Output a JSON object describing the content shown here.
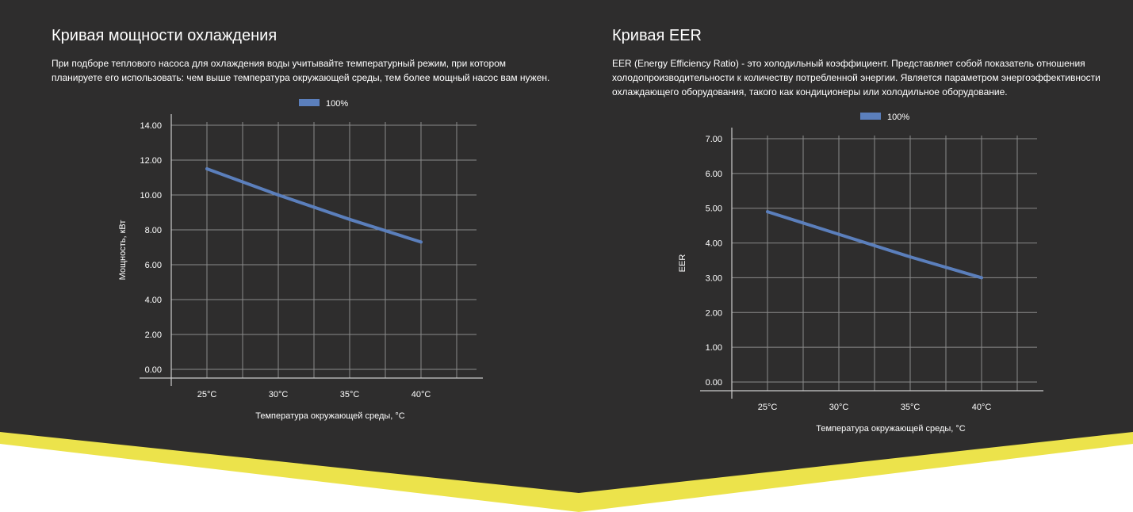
{
  "colors": {
    "background": "#2e2d2d",
    "accent": "#ece34b",
    "line": "#5b7fbc",
    "grid": "#8a8a8a",
    "text": "#ffffff"
  },
  "cooling": {
    "title": "Кривая мощности охлаждения",
    "description": "При подборе теплового насоса для охлаждения воды учитывайте температурный режим, при котором планируете его использовать: чем выше температура окружающей среды, тем более мощный насос вам нужен."
  },
  "eer": {
    "title": "Кривая EER",
    "description": "EER (Energy Efficiency Ratio) - это холодильный коэффициент. Представляет собой показатель отношения холодопроизводительности к количеству потребленной энергии. Является параметром энергоэффективности охлаждающего оборудования, такого как кондиционеры или холодильное оборудование."
  },
  "chart_data": [
    {
      "type": "line",
      "categories": [
        "25°C",
        "30°C",
        "35°C",
        "40°C"
      ],
      "series": [
        {
          "name": "100%",
          "values": [
            11.5,
            10.0,
            8.6,
            7.3
          ]
        }
      ],
      "xlabel": "Температура окружающей среды, °C",
      "ylabel": "Мощность, кВт",
      "yticks": [
        "0.00",
        "2.00",
        "4.00",
        "6.00",
        "8.00",
        "10.00",
        "12.00",
        "14.00"
      ],
      "ylim": [
        0,
        14
      ],
      "grid": true,
      "legend": "top"
    },
    {
      "type": "line",
      "categories": [
        "25°C",
        "30°C",
        "35°C",
        "40°C"
      ],
      "series": [
        {
          "name": "100%",
          "values": [
            4.9,
            4.25,
            3.6,
            3.0
          ]
        }
      ],
      "xlabel": "Температура окружающей среды, °C",
      "ylabel": "EER",
      "yticks": [
        "0.00",
        "1.00",
        "2.00",
        "3.00",
        "4.00",
        "5.00",
        "6.00",
        "7.00"
      ],
      "ylim": [
        0,
        7
      ],
      "grid": true,
      "legend": "top"
    }
  ]
}
